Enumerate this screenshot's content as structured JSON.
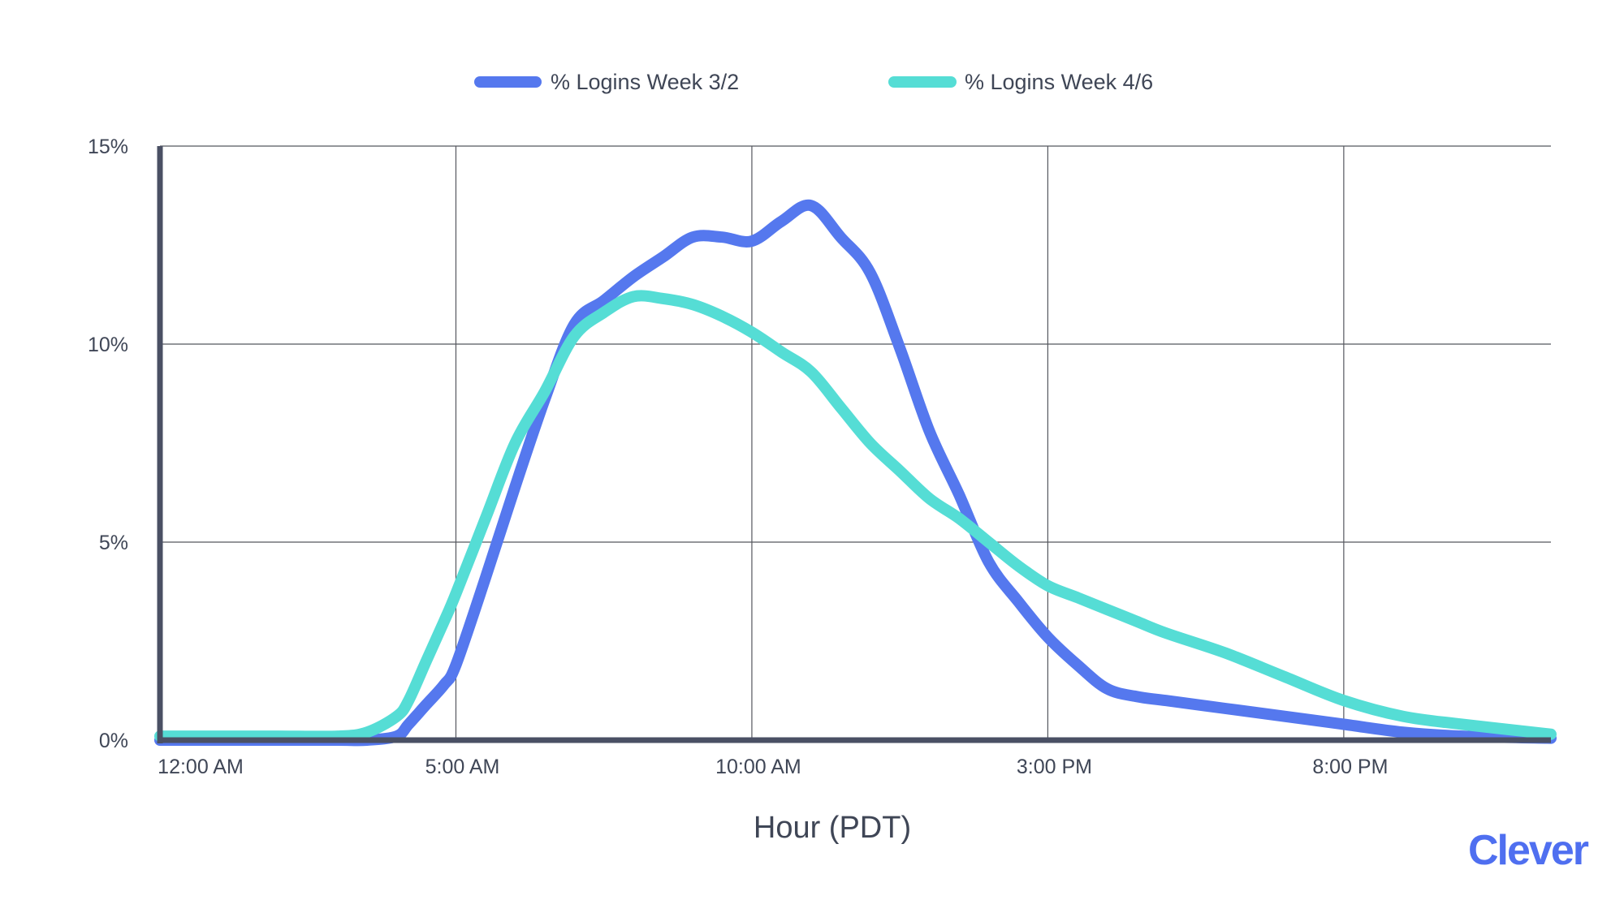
{
  "brand": {
    "logo_text": "Clever",
    "color": "#4f6ff0"
  },
  "chart_data": {
    "type": "line",
    "xlabel": "Hour (PDT)",
    "ylabel": "",
    "xlim": [
      0,
      23.5
    ],
    "ylim": [
      0,
      15
    ],
    "x_ticks": [
      {
        "x": 0.7,
        "label": "12:00 AM"
      },
      {
        "x": 5,
        "label": "5:00 AM"
      },
      {
        "x": 10,
        "label": "10:00 AM"
      },
      {
        "x": 15,
        "label": "3:00 PM"
      },
      {
        "x": 20,
        "label": "8:00 PM"
      }
    ],
    "y_ticks": [
      {
        "y": 0,
        "label": "0%"
      },
      {
        "y": 5,
        "label": "5%"
      },
      {
        "y": 10,
        "label": "10%"
      },
      {
        "y": 15,
        "label": "15%"
      }
    ],
    "grid": true,
    "legend": "top-center",
    "series": [
      {
        "name": "% Logins Week 3/2",
        "color": "#5578ee",
        "x": [
          0,
          1,
          2,
          3,
          3.5,
          4,
          4.2,
          4.5,
          4.8,
          5,
          5.5,
          6,
          6.5,
          7,
          7.5,
          8,
          8.5,
          9,
          9.5,
          10,
          10.5,
          11,
          11.5,
          12,
          12.5,
          13,
          13.5,
          14,
          14.5,
          15,
          15.5,
          16,
          16.5,
          17,
          18,
          19,
          20,
          21,
          22,
          23.5
        ],
        "values": [
          0,
          0,
          0,
          0,
          0,
          0.1,
          0.4,
          0.9,
          1.4,
          1.9,
          4.1,
          6.4,
          8.6,
          10.5,
          11.1,
          11.7,
          12.2,
          12.7,
          12.7,
          12.6,
          13.1,
          13.5,
          12.7,
          11.8,
          9.9,
          7.8,
          6.2,
          4.5,
          3.5,
          2.6,
          1.9,
          1.3,
          1.1,
          1.0,
          0.8,
          0.6,
          0.4,
          0.2,
          0.1,
          0.05
        ]
      },
      {
        "name": "% Logins Week 4/6",
        "color": "#55ddd5",
        "x": [
          0,
          1,
          2,
          3,
          3.5,
          4,
          4.2,
          4.5,
          4.8,
          5,
          5.5,
          6,
          6.5,
          7,
          7.5,
          8,
          8.5,
          9,
          9.5,
          10,
          10.5,
          11,
          11.5,
          12,
          12.5,
          13,
          13.5,
          14,
          14.5,
          15,
          15.5,
          16,
          16.5,
          17,
          18,
          19,
          20,
          21,
          22,
          23.5
        ],
        "values": [
          0.1,
          0.1,
          0.1,
          0.1,
          0.2,
          0.6,
          1.0,
          2.0,
          3.0,
          3.7,
          5.6,
          7.5,
          8.8,
          10.2,
          10.8,
          11.2,
          11.15,
          11.0,
          10.7,
          10.3,
          9.8,
          9.3,
          8.4,
          7.5,
          6.8,
          6.1,
          5.6,
          5.0,
          4.4,
          3.9,
          3.6,
          3.3,
          3.0,
          2.7,
          2.2,
          1.6,
          1.0,
          0.6,
          0.4,
          0.15
        ]
      }
    ]
  }
}
